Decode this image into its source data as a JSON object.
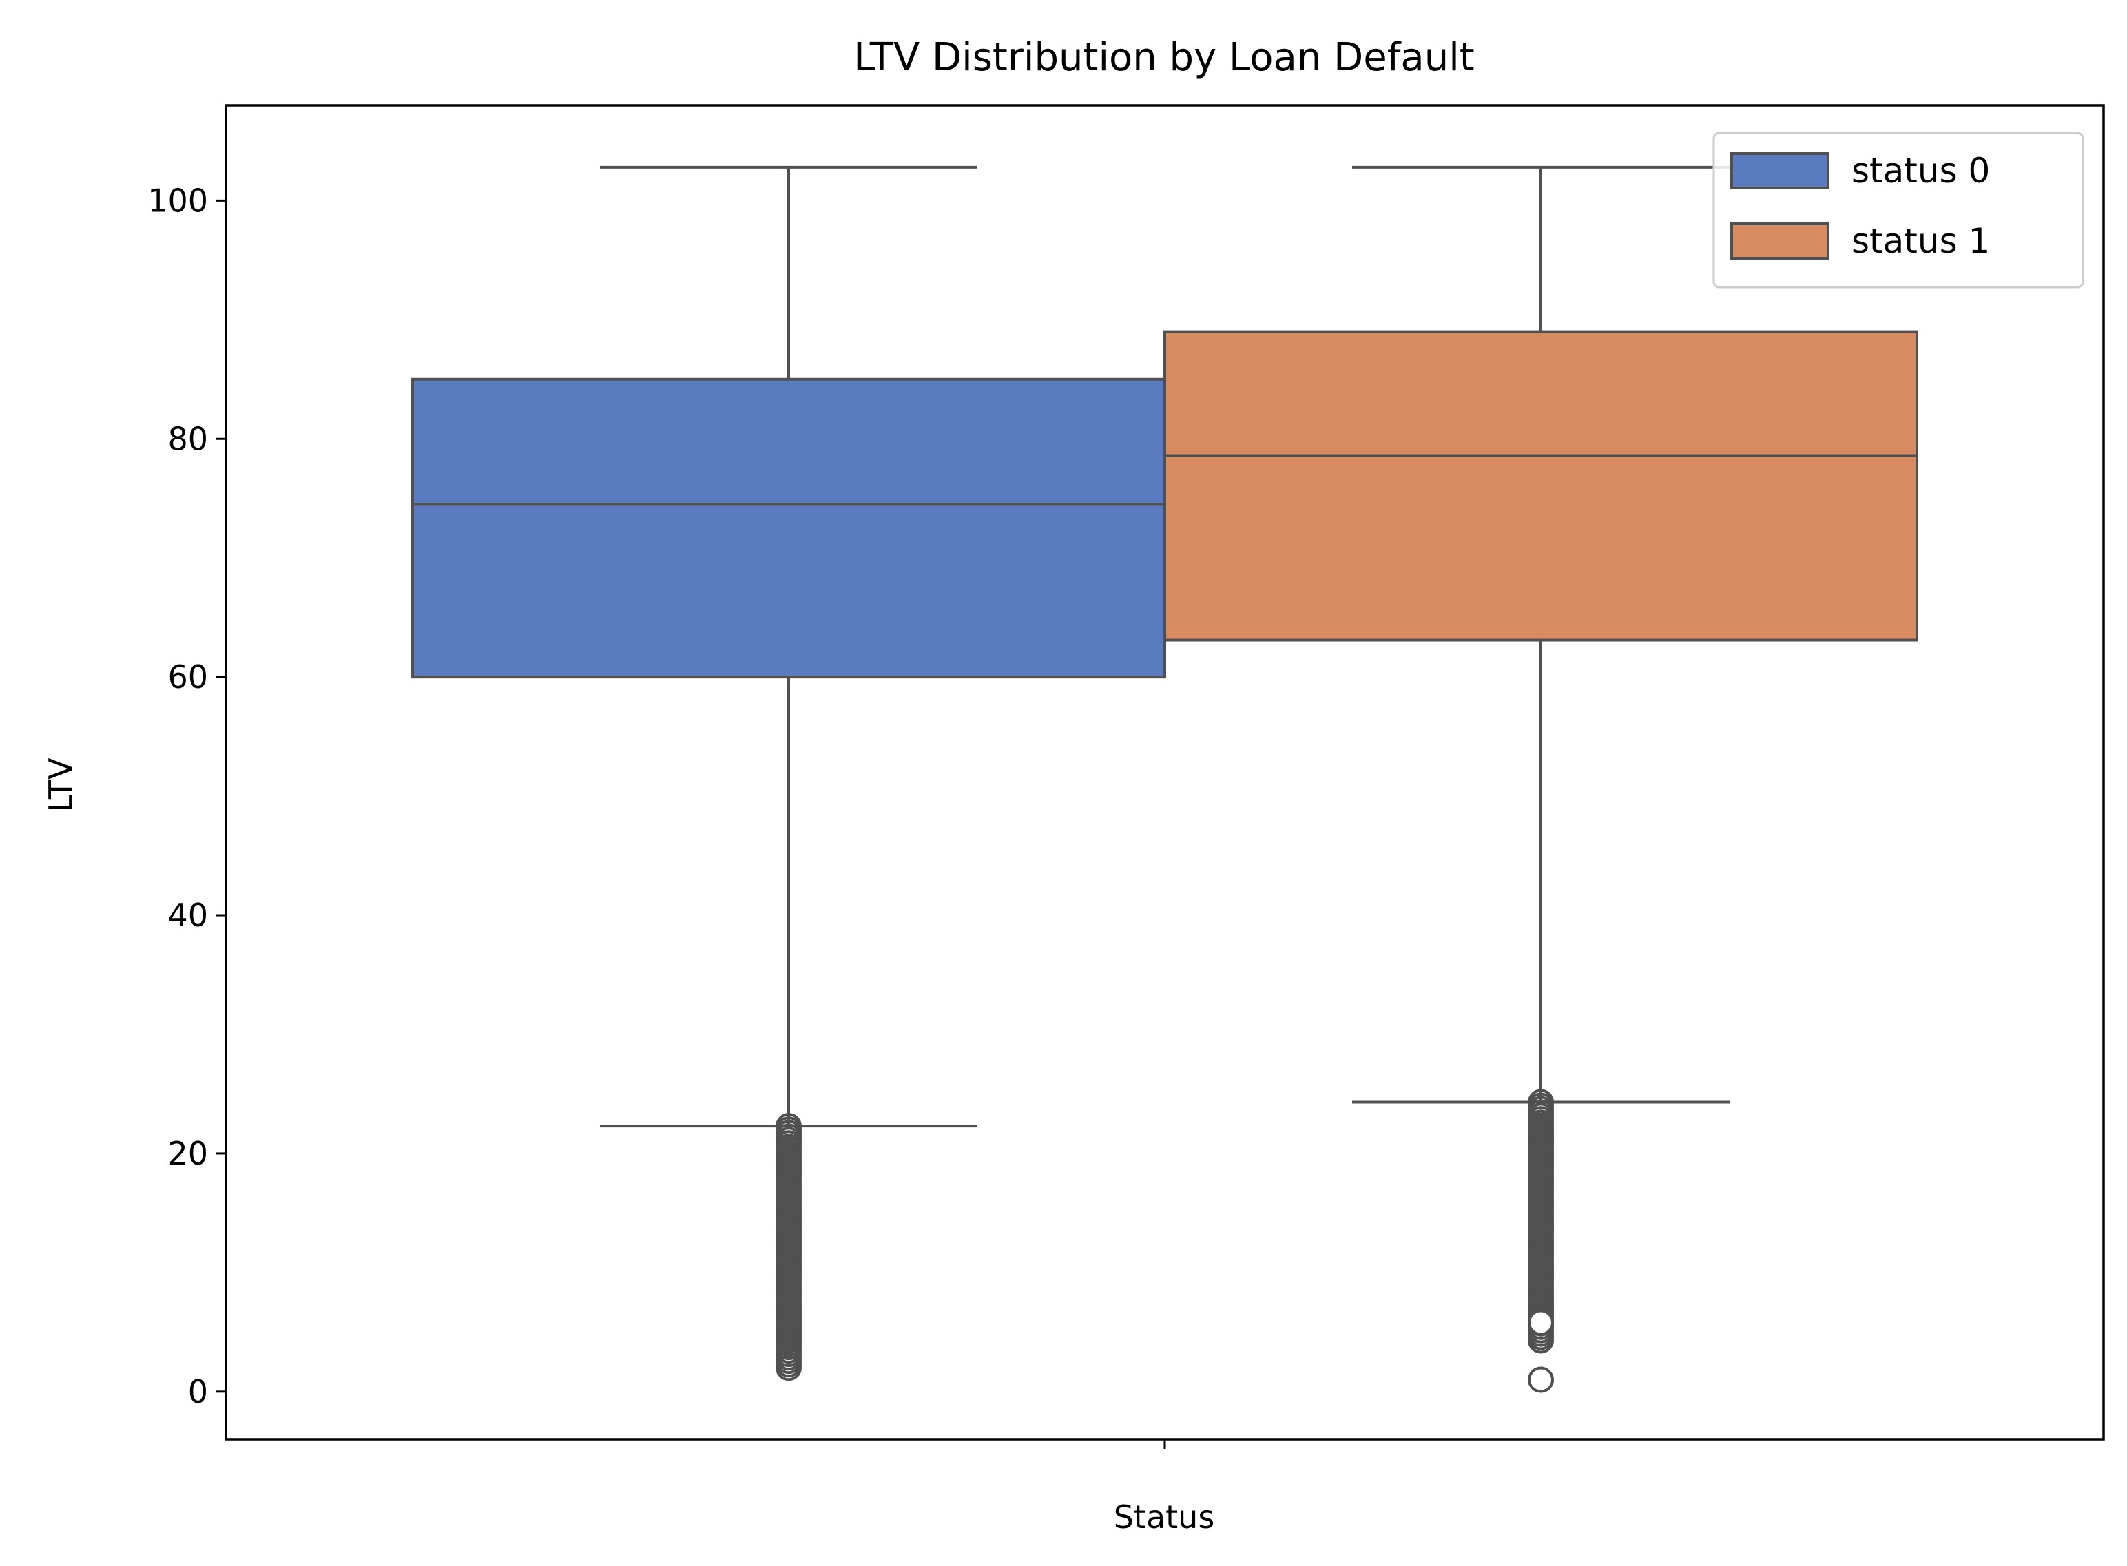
{
  "chart_data": {
    "type": "box",
    "title": "LTV Distribution by Loan Default",
    "xlabel": "Status",
    "ylabel": "LTV",
    "categories": [
      ""
    ],
    "ylim": [
      -4,
      108
    ],
    "yticks": [
      0,
      20,
      40,
      60,
      80,
      100
    ],
    "grid": false,
    "legend_position": "top-right",
    "series": [
      {
        "name": "status 0",
        "color": "#5a7bbf",
        "whisker_low": 22.3,
        "q1": 60.0,
        "median": 74.5,
        "q3": 85.0,
        "whisker_high": 102.8,
        "outliers_range": [
          2.0,
          22.3
        ],
        "outliers_extra": []
      },
      {
        "name": "status 1",
        "color": "#d88b60",
        "whisker_low": 24.3,
        "q1": 63.1,
        "median": 78.6,
        "q3": 89.0,
        "whisker_high": 102.8,
        "outliers_range": [
          4.3,
          24.3
        ],
        "outliers_extra": [
          5.8,
          1.0
        ]
      }
    ]
  }
}
